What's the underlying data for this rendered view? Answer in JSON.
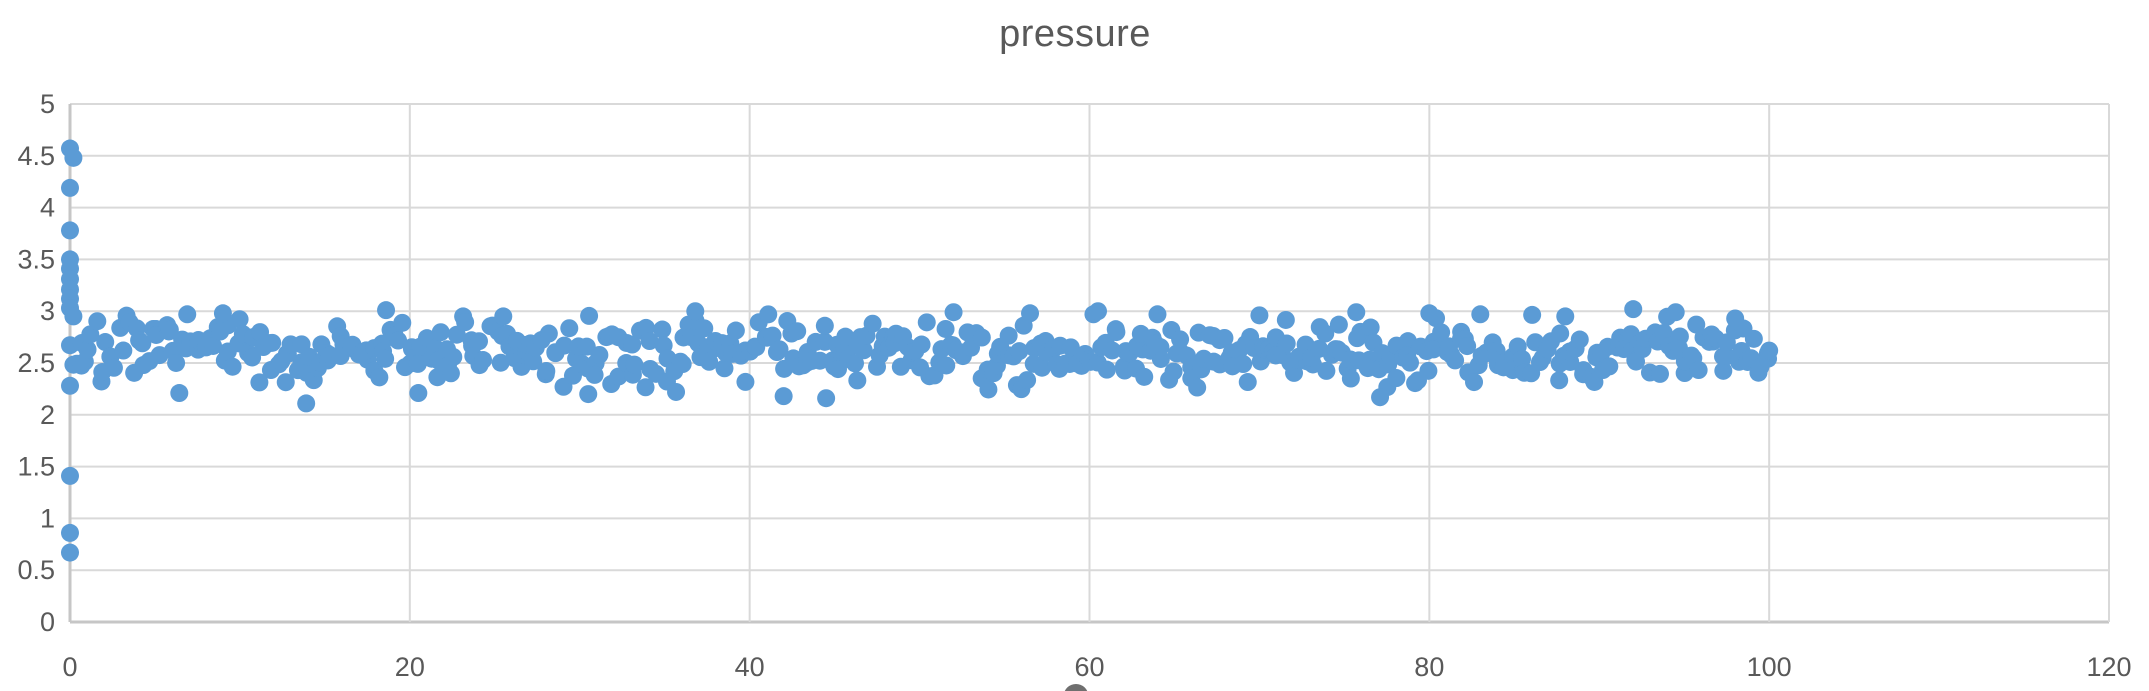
{
  "title": "pressure",
  "colors": {
    "marker": "#5B9BD5",
    "gridline": "#D9D9D9",
    "axis_line": "#C6C6C6",
    "tick_label": "#595959",
    "title_text": "#595959",
    "background": "#FFFFFF",
    "axis_title_glyph": "#6F6F6F"
  },
  "chart_data": {
    "type": "scatter",
    "title": "pressure",
    "xlabel": "",
    "ylabel": "",
    "xlim": [
      0,
      120
    ],
    "ylim": [
      0,
      5
    ],
    "x_ticks": [
      0,
      20,
      40,
      60,
      80,
      100,
      120
    ],
    "y_ticks": [
      0,
      0.5,
      1,
      1.5,
      2,
      2.5,
      3,
      3.5,
      4,
      4.5,
      5
    ],
    "grid": true,
    "legend": false,
    "series_name": "pressure",
    "outlier_points": [
      [
        0,
        4.57
      ],
      [
        0.2,
        4.48
      ],
      [
        0,
        4.19
      ],
      [
        0,
        3.78
      ],
      [
        0,
        3.5
      ],
      [
        0,
        3.41
      ],
      [
        0,
        3.31
      ],
      [
        0,
        3.21
      ],
      [
        0,
        3.12
      ],
      [
        0,
        3.03
      ],
      [
        0.2,
        2.95
      ],
      [
        0,
        2.28
      ],
      [
        0,
        1.41
      ],
      [
        0,
        0.86
      ],
      [
        0,
        0.67
      ]
    ],
    "notable_band_points": [
      [
        6.9,
        2.97
      ],
      [
        9.0,
        2.98
      ],
      [
        13.9,
        2.11
      ],
      [
        18.6,
        3.01
      ],
      [
        20.5,
        2.21
      ],
      [
        25.5,
        2.95
      ],
      [
        30.5,
        2.2
      ],
      [
        36.8,
        3.0
      ],
      [
        42.0,
        2.18
      ],
      [
        44.5,
        2.16
      ],
      [
        52.0,
        2.99
      ],
      [
        56.5,
        2.98
      ],
      [
        60.5,
        3.0
      ],
      [
        64.0,
        2.97
      ],
      [
        70.0,
        2.96
      ],
      [
        75.7,
        2.99
      ],
      [
        77.1,
        2.17
      ],
      [
        80.0,
        2.98
      ],
      [
        83.0,
        2.97
      ],
      [
        88.0,
        2.95
      ],
      [
        92.0,
        3.02
      ],
      [
        94.5,
        2.99
      ],
      [
        98.0,
        2.93
      ],
      [
        100.0,
        2.62
      ]
    ],
    "band": {
      "description": "dense noisy horizontal scatter band",
      "x_min": 0,
      "x_max": 100,
      "n_points": 520,
      "y_mean": 2.6,
      "y_sigma": 0.15,
      "y_clip": [
        2.08,
        3.02
      ],
      "x_jitter": 0.18,
      "seed": 7
    }
  },
  "axis_title_partial_glyph_visible": true
}
